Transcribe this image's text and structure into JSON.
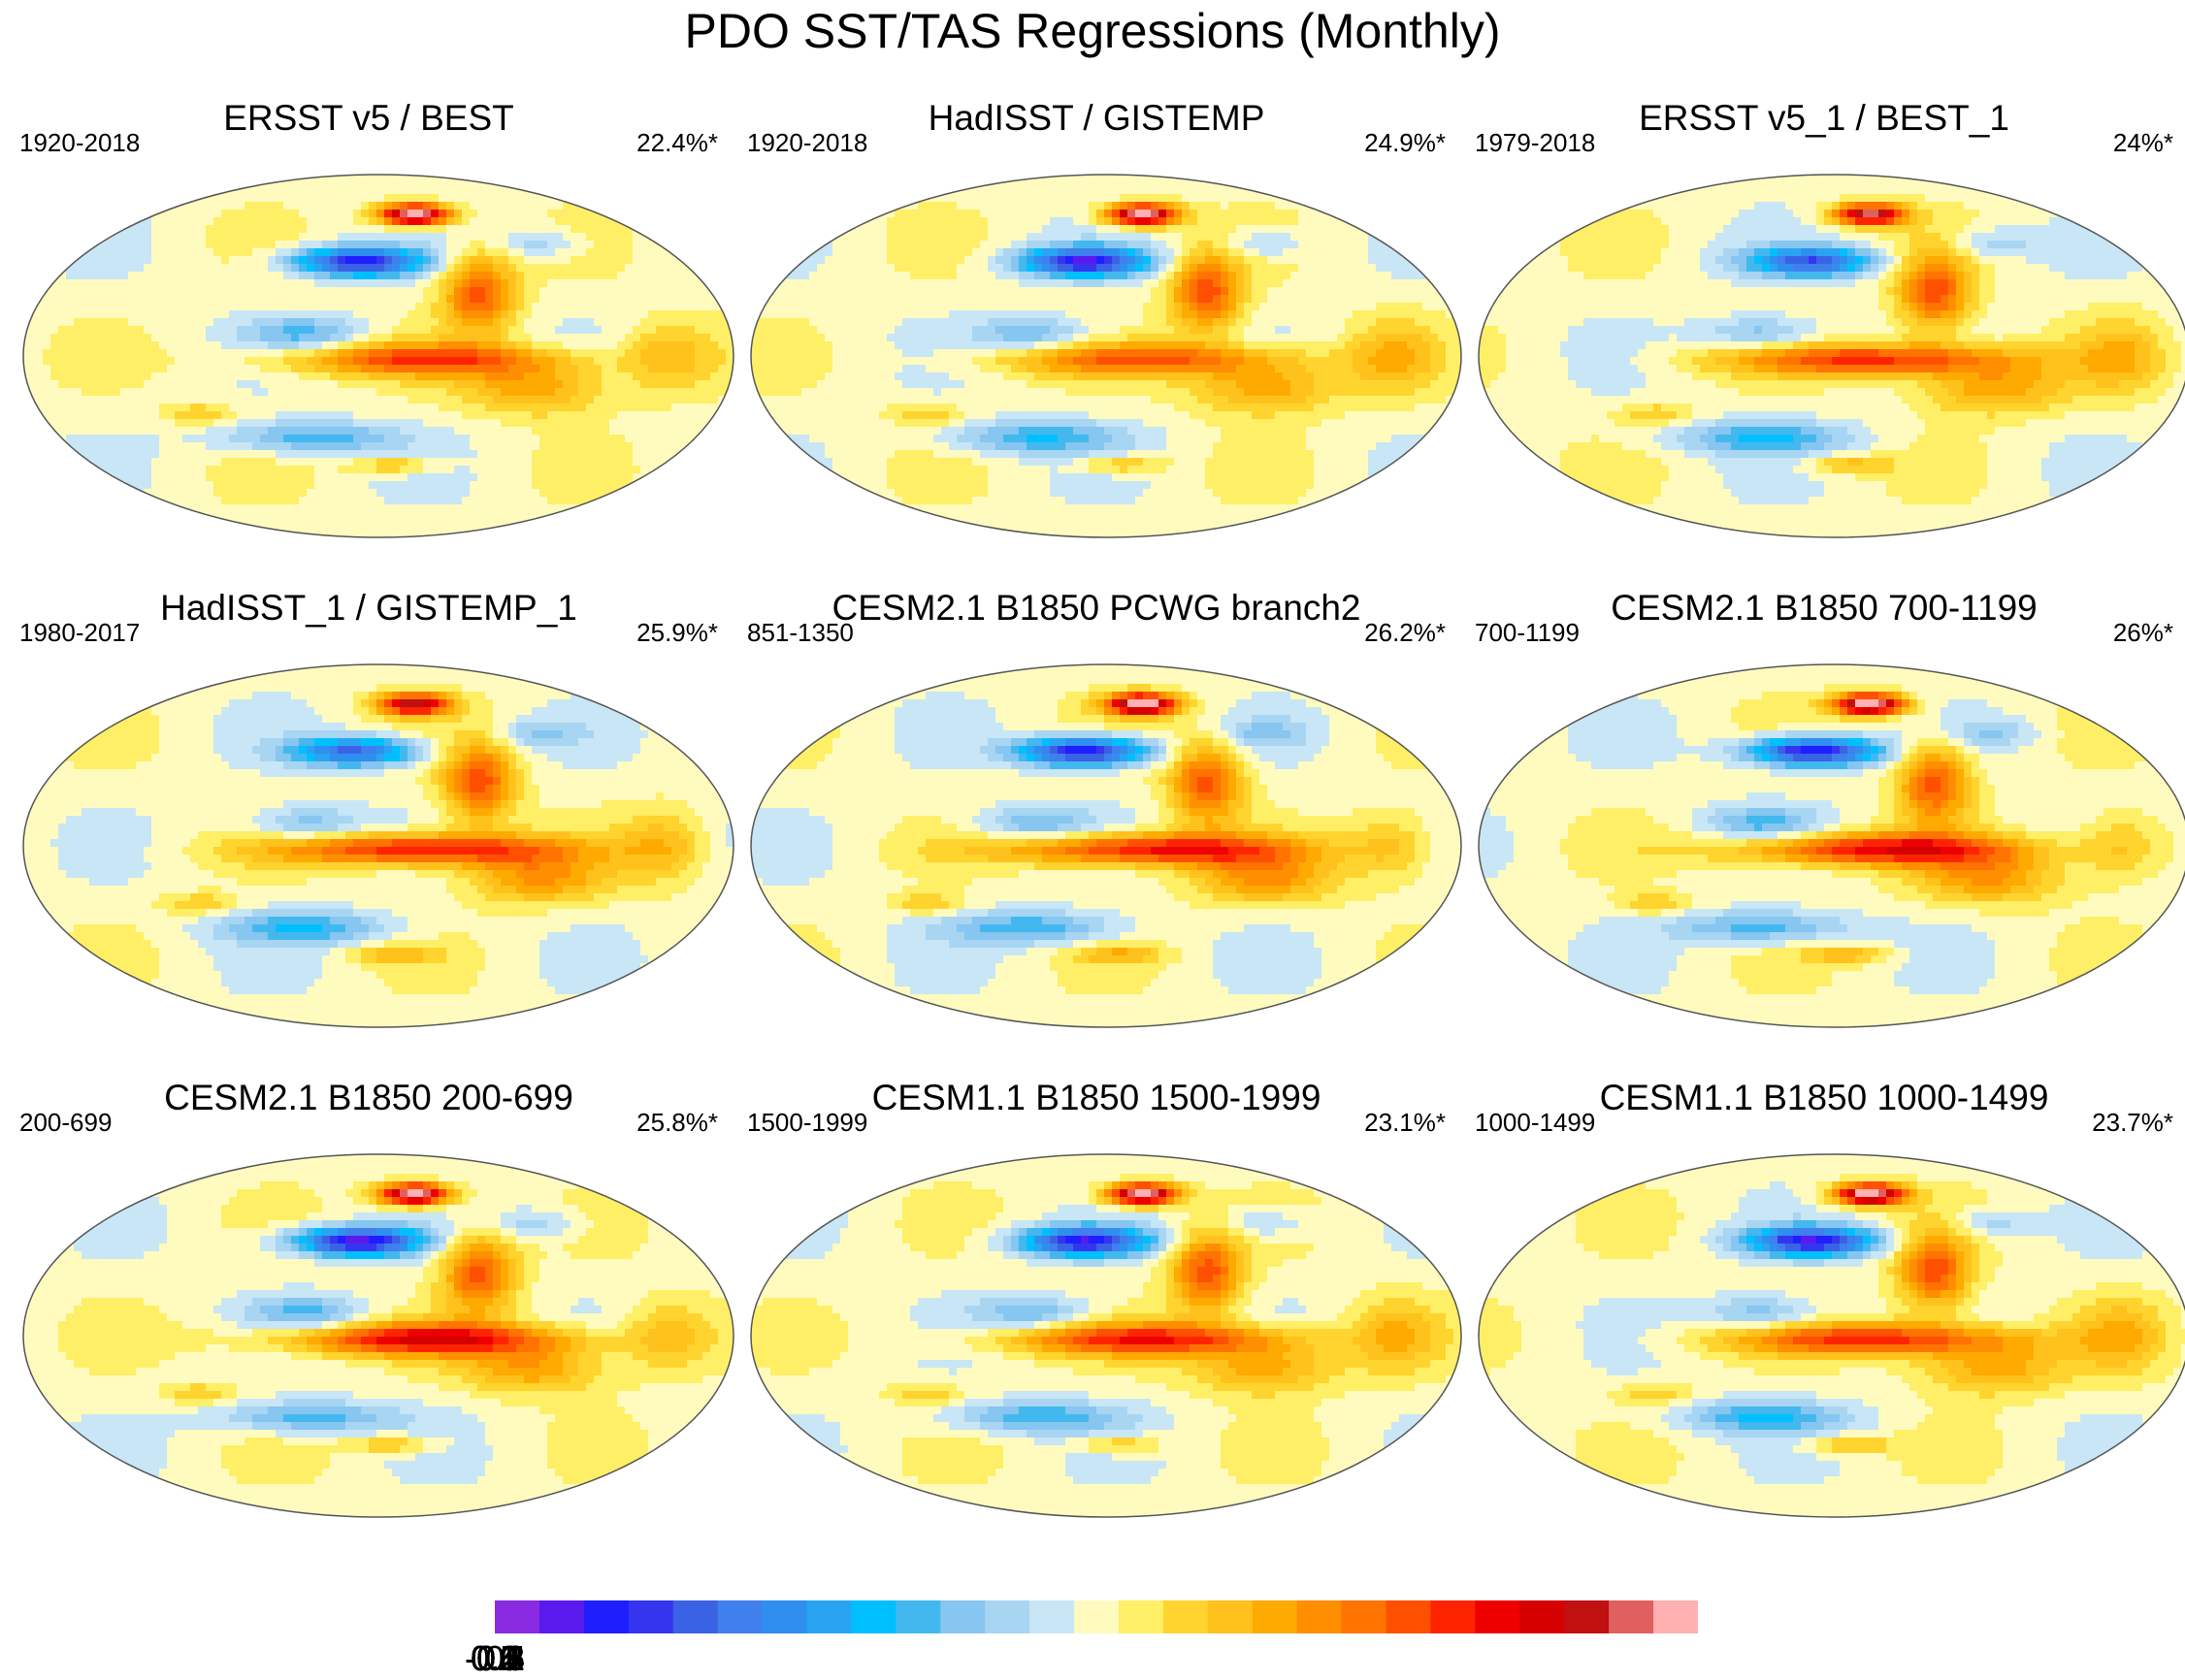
{
  "title": "PDO SST/TAS Regressions (Monthly)",
  "chart_data": {
    "type": "heatmap",
    "projection": "Robinson (global), Pacific-centred",
    "variable": "SST/TAS regression on PDO index",
    "panels": [
      {
        "title": "ERSST v5 / BEST",
        "period": "1920-2018",
        "variance": "22.4%*",
        "pattern": {
          "north_pacific_min": -0.55,
          "tropical_pacific_max": 0.35,
          "alaska_max": 0.7
        }
      },
      {
        "title": "HadISST / GISTEMP",
        "period": "1920-2018",
        "variance": "24.9%*",
        "pattern": {
          "north_pacific_min": -0.55,
          "tropical_pacific_max": 0.32,
          "alaska_max": 0.7
        }
      },
      {
        "title": "ERSST v5_1 / BEST_1",
        "period": "1979-2018",
        "variance": "24%*",
        "pattern": {
          "north_pacific_min": -0.45,
          "tropical_pacific_max": 0.4,
          "alaska_max": 0.6
        }
      },
      {
        "title": "HadISST_1 / GISTEMP_1",
        "period": "1980-2017",
        "variance": "25.9%*",
        "pattern": {
          "north_pacific_min": -0.45,
          "tropical_pacific_max": 0.45,
          "alaska_max": 0.55
        }
      },
      {
        "title": "CESM2.1 B1850 PCWG branch2",
        "period": "851-1350",
        "variance": "26.2%*",
        "pattern": {
          "north_pacific_min": -0.6,
          "tropical_pacific_max": 0.45,
          "alaska_max": 0.7
        }
      },
      {
        "title": "CESM2.1 B1850 700-1199",
        "period": "700-1199",
        "variance": "26%*",
        "pattern": {
          "north_pacific_min": -0.6,
          "tropical_pacific_max": 0.45,
          "alaska_max": 0.7
        }
      },
      {
        "title": "CESM2.1 B1850 200-699",
        "period": "200-699",
        "variance": "25.8%*",
        "pattern": {
          "north_pacific_min": -0.6,
          "tropical_pacific_max": 0.45,
          "alaska_max": 0.7
        }
      },
      {
        "title": "CESM1.1 B1850 1500-1999",
        "period": "1500-1999",
        "variance": "23.1%*",
        "pattern": {
          "north_pacific_min": -0.55,
          "tropical_pacific_max": 0.4,
          "alaska_max": 0.7
        }
      },
      {
        "title": "CESM1.1 B1850 1000-1499",
        "period": "1000-1499",
        "variance": "23.7%*",
        "pattern": {
          "north_pacific_min": -0.55,
          "tropical_pacific_max": 0.4,
          "alaska_max": 0.7
        }
      }
    ],
    "colorbar": {
      "levels": [
        -0.65,
        -0.6,
        -0.55,
        -0.5,
        -0.45,
        -0.4,
        -0.35,
        -0.3,
        -0.25,
        -0.2,
        -0.15,
        -0.1,
        -0.05,
        0,
        0.05,
        0.1,
        0.15,
        0.2,
        0.25,
        0.3,
        0.35,
        0.4,
        0.45,
        0.5,
        0.55,
        0.6,
        0.65
      ],
      "colors": [
        "#8a2be2",
        "#5a1aee",
        "#1e1eff",
        "#3535ef",
        "#3a62e5",
        "#3f7fee",
        "#2f8fef",
        "#2aa4f2",
        "#00bfff",
        "#43b8ee",
        "#86c6f0",
        "#a8d5f2",
        "#c8e6f5",
        "#fffbbf",
        "#ffef66",
        "#ffd42e",
        "#ffc21c",
        "#ffaa00",
        "#ff8e00",
        "#ff7300",
        "#ff4f00",
        "#ff2400",
        "#ee0000",
        "#d50000",
        "#c01010",
        "#e06060",
        "#ffb0b0"
      ],
      "tick_labels": [
        "-0.6",
        "-0.5",
        "-0.4",
        "-0.3",
        "-0.2",
        "-0.1",
        "0",
        "0.1",
        "0.2",
        "0.3",
        "0.4",
        "0.5",
        "0.6"
      ],
      "tick_values": [
        -0.6,
        -0.5,
        -0.4,
        -0.3,
        -0.2,
        -0.1,
        0,
        0.1,
        0.2,
        0.3,
        0.4,
        0.5,
        0.6
      ]
    }
  }
}
